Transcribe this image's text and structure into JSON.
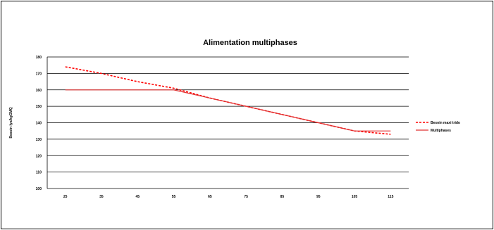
{
  "chart_data": {
    "type": "line",
    "title": "Alimentation multiphases",
    "xlabel": "",
    "ylabel": "Besoin lys/kgGMQ",
    "x": [
      25,
      35,
      45,
      55,
      65,
      75,
      85,
      95,
      105,
      115
    ],
    "ylim": [
      100,
      180
    ],
    "yticks": [
      100,
      110,
      120,
      130,
      140,
      150,
      160,
      170,
      180
    ],
    "grid": true,
    "legend": "right",
    "series": [
      {
        "name": "Besoin maxi trido",
        "style": "dashed",
        "color": "#ff0000",
        "values": [
          174,
          170,
          165,
          161,
          155,
          150,
          145,
          140,
          135,
          133
        ]
      },
      {
        "name": "Multiphases",
        "style": "solid",
        "color": "#e03030",
        "values": [
          160,
          160,
          160,
          160,
          155,
          150,
          145,
          140,
          135,
          135
        ]
      }
    ]
  }
}
